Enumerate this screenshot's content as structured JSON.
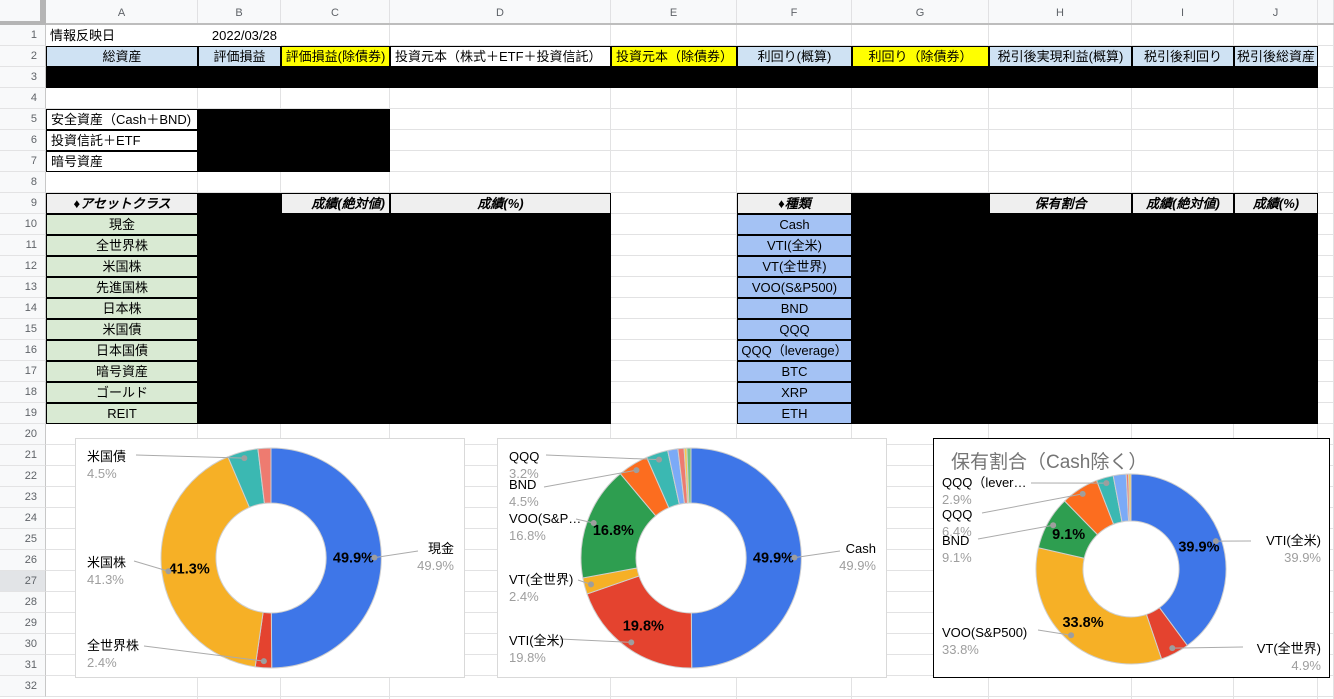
{
  "app": {
    "type": "spreadsheet"
  },
  "sheet": {
    "column_headers": [
      "A",
      "B",
      "C",
      "D",
      "E",
      "F",
      "G",
      "H",
      "I",
      "J",
      ""
    ],
    "row_count": 32,
    "highlighted_row": 27,
    "cells": [
      {
        "r": 1,
        "c": "A",
        "t": "情報反映日",
        "s": "plain",
        "a": "left"
      },
      {
        "r": 1,
        "c": "B",
        "t": "2022/03/28",
        "s": "plain",
        "a": "right"
      },
      {
        "r": 2,
        "c": "A",
        "t": "総資産",
        "s": "hdrblue",
        "a": "center"
      },
      {
        "r": 2,
        "c": "B",
        "t": "評価損益",
        "s": "hdrblue",
        "a": "center"
      },
      {
        "r": 2,
        "c": "C",
        "t": "評価損益(除債券)",
        "s": "yellow",
        "a": "center"
      },
      {
        "r": 2,
        "c": "D",
        "t": "投資元本（株式＋ETF＋投資信託）",
        "s": "bordered",
        "a": "left"
      },
      {
        "r": 2,
        "c": "E",
        "t": "投資元本（除債券）",
        "s": "yellow",
        "a": "left"
      },
      {
        "r": 2,
        "c": "F",
        "t": "利回り(概算)",
        "s": "hdrblue",
        "a": "center"
      },
      {
        "r": 2,
        "c": "G",
        "t": "利回り（除債券）",
        "s": "yellow",
        "a": "center"
      },
      {
        "r": 2,
        "c": "H",
        "t": "税引後実現利益(概算)",
        "s": "hdrblue",
        "a": "center"
      },
      {
        "r": 2,
        "c": "I",
        "t": "税引後利回り",
        "s": "hdrblue",
        "a": "center"
      },
      {
        "r": 2,
        "c": "J",
        "t": "税引後総資産",
        "s": "hdrblue",
        "a": "center"
      },
      {
        "r": 5,
        "c": "A",
        "t": "安全資産（Cash＋BND)",
        "s": "bordered",
        "a": "left"
      },
      {
        "r": 6,
        "c": "A",
        "t": "投資信託＋ETF",
        "s": "bordered",
        "a": "left"
      },
      {
        "r": 7,
        "c": "A",
        "t": "暗号資産",
        "s": "bordered",
        "a": "left"
      },
      {
        "r": 9,
        "c": "A",
        "t": "♦アセットクラス",
        "s": "hdrgray",
        "a": "center"
      },
      {
        "r": 9,
        "c": "C",
        "t": "成績(絶対値)",
        "s": "hdrgray",
        "a": "right"
      },
      {
        "r": 9,
        "c": "D",
        "t": "成績(%)",
        "s": "hdrgray",
        "a": "center"
      },
      {
        "r": 9,
        "c": "F",
        "t": "♦種類",
        "s": "hdrgray",
        "a": "center"
      },
      {
        "r": 9,
        "c": "H",
        "t": "保有割合",
        "s": "hdrgray",
        "a": "center"
      },
      {
        "r": 9,
        "c": "I",
        "t": "成績(絶対値)",
        "s": "hdrgray",
        "a": "center"
      },
      {
        "r": 9,
        "c": "J",
        "t": "成績(%)",
        "s": "hdrgray",
        "a": "center"
      },
      {
        "r": 10,
        "c": "A",
        "t": "現金",
        "s": "green",
        "a": "center"
      },
      {
        "r": 11,
        "c": "A",
        "t": "全世界株",
        "s": "green",
        "a": "center"
      },
      {
        "r": 12,
        "c": "A",
        "t": "米国株",
        "s": "green",
        "a": "center"
      },
      {
        "r": 13,
        "c": "A",
        "t": "先進国株",
        "s": "green",
        "a": "center"
      },
      {
        "r": 14,
        "c": "A",
        "t": "日本株",
        "s": "green",
        "a": "center"
      },
      {
        "r": 15,
        "c": "A",
        "t": "米国債",
        "s": "green",
        "a": "center"
      },
      {
        "r": 16,
        "c": "A",
        "t": "日本国債",
        "s": "green",
        "a": "center"
      },
      {
        "r": 17,
        "c": "A",
        "t": "暗号資産",
        "s": "green",
        "a": "center"
      },
      {
        "r": 18,
        "c": "A",
        "t": "ゴールド",
        "s": "green",
        "a": "center"
      },
      {
        "r": 19,
        "c": "A",
        "t": "REIT",
        "s": "green",
        "a": "center"
      },
      {
        "r": 10,
        "c": "F",
        "t": "Cash",
        "s": "blue",
        "a": "center"
      },
      {
        "r": 11,
        "c": "F",
        "t": "VTI(全米)",
        "s": "blue",
        "a": "center"
      },
      {
        "r": 12,
        "c": "F",
        "t": "VT(全世界)",
        "s": "blue",
        "a": "center"
      },
      {
        "r": 13,
        "c": "F",
        "t": "VOO(S&P500)",
        "s": "blue",
        "a": "center"
      },
      {
        "r": 14,
        "c": "F",
        "t": "BND",
        "s": "blue",
        "a": "center"
      },
      {
        "r": 15,
        "c": "F",
        "t": "QQQ",
        "s": "blue",
        "a": "center"
      },
      {
        "r": 16,
        "c": "F",
        "t": "QQQ（leverage）",
        "s": "blue",
        "a": "center"
      },
      {
        "r": 17,
        "c": "F",
        "t": "BTC",
        "s": "blue",
        "a": "center"
      },
      {
        "r": 18,
        "c": "F",
        "t": "XRP",
        "s": "blue",
        "a": "center"
      },
      {
        "r": 19,
        "c": "F",
        "t": "ETH",
        "s": "blue",
        "a": "center"
      }
    ],
    "redactions": [
      {
        "c1": "A",
        "c2": "J",
        "r1": 3,
        "r2": 3
      },
      {
        "c1": "B",
        "c2": "C",
        "r1": 5,
        "r2": 7
      },
      {
        "c1": "B",
        "c2": "B",
        "r1": 9,
        "r2": 9
      },
      {
        "c1": "B",
        "c2": "D",
        "r1": 10,
        "r2": 19
      },
      {
        "c1": "G",
        "c2": "G",
        "r1": 9,
        "r2": 9
      },
      {
        "c1": "G",
        "c2": "J",
        "r1": 10,
        "r2": 19
      }
    ]
  },
  "charts": [
    {
      "title": "",
      "chart_data": {
        "type": "pie",
        "donut": true,
        "legend_position": "none",
        "slices": [
          {
            "label": "現金",
            "value": 49.9,
            "color": "#3E76E8"
          },
          {
            "label": "全世界株",
            "value": 2.4,
            "color": "#E4432F"
          },
          {
            "label": "米国株",
            "value": 41.3,
            "color": "#F6B026"
          },
          {
            "label": "米国債",
            "value": 4.5,
            "color": "#3BB8B2"
          },
          {
            "label": "",
            "value": 1.9,
            "color": "#EE7B70"
          }
        ]
      },
      "callouts": [
        {
          "slice": 3,
          "text": "米国債",
          "pct": "4.5%"
        },
        {
          "slice": 2,
          "text": "米国株",
          "pct": "41.3%"
        },
        {
          "slice": 1,
          "text": "全世界株",
          "pct": "2.4%"
        },
        {
          "slice": 0,
          "text": "現金",
          "pct": "49.9%"
        }
      ]
    },
    {
      "title": "",
      "chart_data": {
        "type": "pie",
        "donut": true,
        "legend_position": "none",
        "slices": [
          {
            "label": "Cash",
            "value": 49.9,
            "color": "#3E76E8"
          },
          {
            "label": "VTI(全米)",
            "value": 19.8,
            "color": "#E4432F"
          },
          {
            "label": "VT(全世界)",
            "value": 2.4,
            "color": "#F6B026"
          },
          {
            "label": "VOO(S&P500)",
            "value": 16.8,
            "color": "#2E9E50"
          },
          {
            "label": "BND",
            "value": 4.5,
            "color": "#FC6D1F"
          },
          {
            "label": "QQQ",
            "value": 3.2,
            "color": "#3BB8B2"
          },
          {
            "label": "",
            "value": 1.5,
            "color": "#7BAAF7"
          },
          {
            "label": "",
            "value": 0.9,
            "color": "#EE7B70"
          },
          {
            "label": "",
            "value": 0.4,
            "color": "#F7CB4D"
          },
          {
            "label": "",
            "value": 0.6,
            "color": "#71C287"
          }
        ]
      },
      "callouts": [
        {
          "slice": 5,
          "text": "QQQ",
          "pct": "3.2%"
        },
        {
          "slice": 4,
          "text": "BND",
          "pct": "4.5%"
        },
        {
          "slice": 3,
          "text": "VOO(S&P…",
          "pct": "16.8%"
        },
        {
          "slice": 2,
          "text": "VT(全世界)",
          "pct": "2.4%"
        },
        {
          "slice": 1,
          "text": "VTI(全米)",
          "pct": "19.8%"
        },
        {
          "slice": 0,
          "text": "Cash",
          "pct": "49.9%"
        }
      ]
    },
    {
      "title": "保有割合（Cash除く）",
      "chart_data": {
        "type": "pie",
        "donut": true,
        "legend_position": "none",
        "slices": [
          {
            "label": "VTI(全米)",
            "value": 39.9,
            "color": "#3E76E8"
          },
          {
            "label": "VT(全世界)",
            "value": 4.9,
            "color": "#E4432F"
          },
          {
            "label": "VOO(S&P500)",
            "value": 33.8,
            "color": "#F6B026"
          },
          {
            "label": "BND",
            "value": 9.1,
            "color": "#2E9E50"
          },
          {
            "label": "QQQ",
            "value": 6.4,
            "color": "#FC6D1F"
          },
          {
            "label": "QQQ（leverage）",
            "value": 2.9,
            "color": "#3BB8B2"
          },
          {
            "label": "",
            "value": 2.2,
            "color": "#7BAAF7"
          },
          {
            "label": "",
            "value": 0.4,
            "color": "#EE7B70"
          },
          {
            "label": "",
            "value": 0.4,
            "color": "#F7CB4D"
          }
        ]
      },
      "callouts": [
        {
          "slice": 5,
          "text": "QQQ（lever…",
          "pct": "2.9%"
        },
        {
          "slice": 4,
          "text": "QQQ",
          "pct": "6.4%"
        },
        {
          "slice": 3,
          "text": "BND",
          "pct": "9.1%"
        },
        {
          "slice": 2,
          "text": "VOO(S&P500)",
          "pct": "33.8%"
        },
        {
          "slice": 0,
          "text": "VTI(全米)",
          "pct": "39.9%"
        },
        {
          "slice": 1,
          "text": "VT(全世界)",
          "pct": "4.9%"
        }
      ]
    }
  ],
  "colors": {
    "cell_header_blue": "#CFE2F3",
    "cell_yellow": "#FFFF00",
    "cell_green": "#D9EAD3",
    "cell_blue": "#A4C2F4",
    "cell_header_gray": "#EFEFEF",
    "gridline": "#E2E2E3",
    "header_text": "#5F6368",
    "label_gray": "#9E9E9E",
    "chart_title_gray": "#757575",
    "chart_border": "#D9D9D9"
  }
}
